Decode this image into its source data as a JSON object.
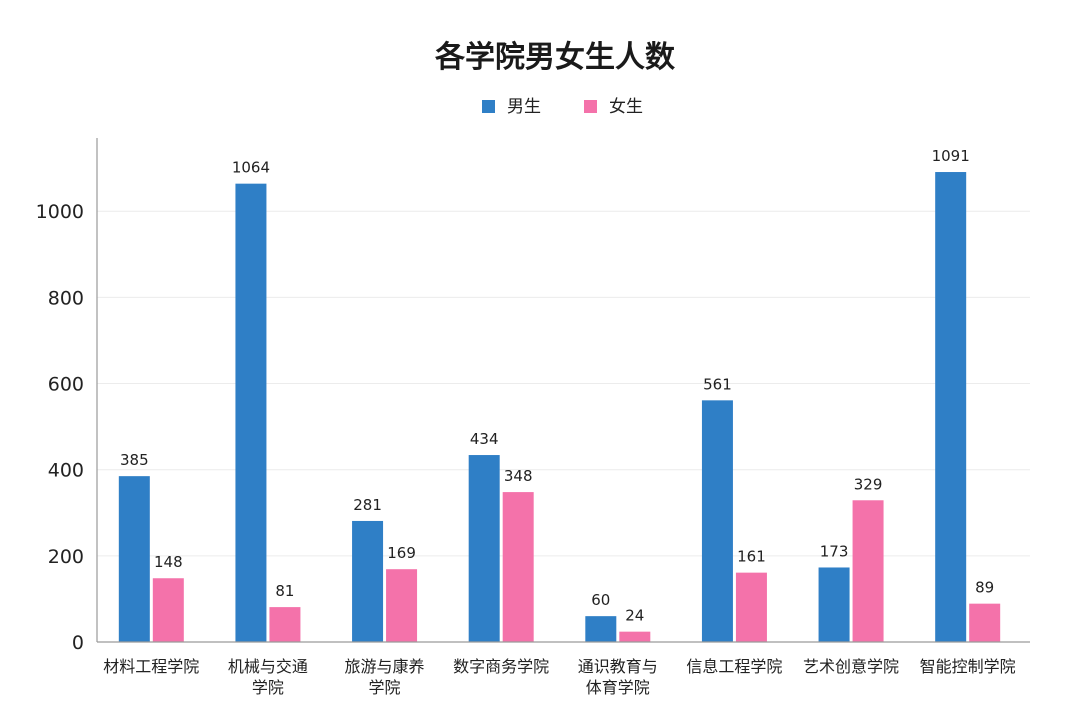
{
  "chart_data": {
    "type": "bar",
    "title": "各学院男女生人数",
    "xlabel": "",
    "ylabel": "",
    "ylim": [
      0,
      1170
    ],
    "yticks": [
      0,
      200,
      400,
      600,
      800,
      1000
    ],
    "grid": true,
    "legend_position": "top-center",
    "categories": [
      [
        "材料工程学院"
      ],
      [
        "机械与交通",
        "学院"
      ],
      [
        "旅游与康养",
        "学院"
      ],
      [
        "数字商务学院"
      ],
      [
        "通识教育与",
        "体育学院"
      ],
      [
        "信息工程学院"
      ],
      [
        "艺术创意学院"
      ],
      [
        "智能控制学院"
      ]
    ],
    "series": [
      {
        "name": "男生",
        "color": "#2f7fc6",
        "values": [
          385,
          1064,
          281,
          434,
          60,
          561,
          173,
          1091
        ]
      },
      {
        "name": "女生",
        "color": "#f472aa",
        "values": [
          148,
          81,
          169,
          348,
          24,
          161,
          329,
          89
        ]
      }
    ]
  }
}
